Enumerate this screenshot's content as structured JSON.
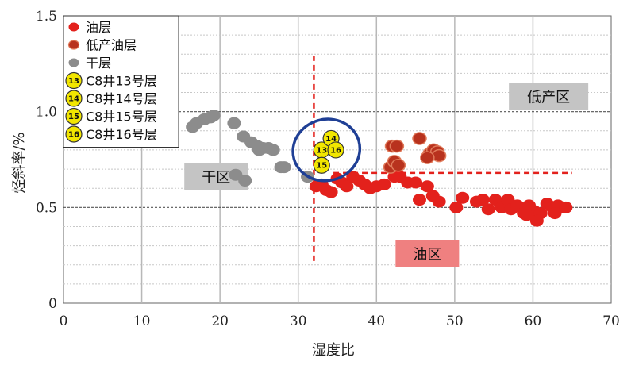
{
  "chart_data": {
    "type": "scatter",
    "title": "",
    "xlabel": "湿度比",
    "ylabel": "烃斜率/%",
    "xlim": [
      0,
      70
    ],
    "ylim": [
      0,
      1.5
    ],
    "x_ticks": [
      "0",
      "10",
      "20",
      "30",
      "40",
      "50",
      "60",
      "70"
    ],
    "y_ticks": [
      "0",
      "0.5",
      "1.0",
      "1.5"
    ],
    "grid": true,
    "legend_position": "top-left",
    "series": [
      {
        "name": "油层",
        "color": "#e3211c",
        "points": [
          [
            32.3,
            0.61
          ],
          [
            33.0,
            0.62
          ],
          [
            33.6,
            0.59
          ],
          [
            34.2,
            0.58
          ],
          [
            35.0,
            0.65
          ],
          [
            35.6,
            0.63
          ],
          [
            36.2,
            0.61
          ],
          [
            37.0,
            0.66
          ],
          [
            37.8,
            0.64
          ],
          [
            38.5,
            0.62
          ],
          [
            39.2,
            0.6
          ],
          [
            40.0,
            0.61
          ],
          [
            41.0,
            0.62
          ],
          [
            42.3,
            0.66
          ],
          [
            43.0,
            0.66
          ],
          [
            44.0,
            0.63
          ],
          [
            45.0,
            0.63
          ],
          [
            46.5,
            0.61
          ],
          [
            47.2,
            0.56
          ],
          [
            48.0,
            0.53
          ],
          [
            45.5,
            0.54
          ],
          [
            50.2,
            0.5
          ],
          [
            51.0,
            0.55
          ],
          [
            52.8,
            0.53
          ],
          [
            53.6,
            0.54
          ],
          [
            54.3,
            0.49
          ],
          [
            55.2,
            0.54
          ],
          [
            56.0,
            0.5
          ],
          [
            56.8,
            0.54
          ],
          [
            57.2,
            0.49
          ],
          [
            58.0,
            0.51
          ],
          [
            58.8,
            0.47
          ],
          [
            59.5,
            0.51
          ],
          [
            60.2,
            0.48
          ],
          [
            61.0,
            0.47
          ],
          [
            61.8,
            0.52
          ],
          [
            62.5,
            0.5
          ],
          [
            63.2,
            0.51
          ],
          [
            63.8,
            0.5
          ],
          [
            64.2,
            0.5
          ],
          [
            60.5,
            0.43
          ],
          [
            59.2,
            0.46
          ],
          [
            62.8,
            0.47
          ]
        ]
      },
      {
        "name": "低产油层",
        "color": "#b8321e",
        "points": [
          [
            41.8,
            0.71
          ],
          [
            42.3,
            0.74
          ],
          [
            42.8,
            0.72
          ],
          [
            42.0,
            0.82
          ],
          [
            42.6,
            0.82
          ],
          [
            45.5,
            0.86
          ],
          [
            46.8,
            0.78
          ],
          [
            47.3,
            0.8
          ],
          [
            47.8,
            0.79
          ],
          [
            48.0,
            0.77
          ],
          [
            46.5,
            0.76
          ]
        ]
      },
      {
        "name": "干层",
        "color": "#8c8c8c",
        "points": [
          [
            16.5,
            0.92
          ],
          [
            17.0,
            0.94
          ],
          [
            18.0,
            0.96
          ],
          [
            18.8,
            0.97
          ],
          [
            19.2,
            0.98
          ],
          [
            21.8,
            0.94
          ],
          [
            23.0,
            0.87
          ],
          [
            24.0,
            0.84
          ],
          [
            24.8,
            0.82
          ],
          [
            25.5,
            0.81
          ],
          [
            26.2,
            0.81
          ],
          [
            26.8,
            0.8
          ],
          [
            25.0,
            0.8
          ],
          [
            27.8,
            0.71
          ],
          [
            28.2,
            0.71
          ],
          [
            22.0,
            0.67
          ],
          [
            23.2,
            0.64
          ],
          [
            31.2,
            0.66
          ]
        ]
      },
      {
        "name": "C8井13号层",
        "marker_label": "13",
        "color": "#f2e600",
        "points": [
          [
            33.0,
            0.8
          ]
        ]
      },
      {
        "name": "C8井14号层",
        "marker_label": "14",
        "color": "#f2e600",
        "points": [
          [
            34.2,
            0.86
          ]
        ]
      },
      {
        "name": "C8井15号层",
        "marker_label": "15",
        "color": "#f2e600",
        "points": [
          [
            33.0,
            0.72
          ]
        ]
      },
      {
        "name": "C8井16号层",
        "marker_label": "16",
        "color": "#f2e600",
        "points": [
          [
            34.8,
            0.8
          ]
        ]
      }
    ],
    "regions": [
      {
        "label": "干区",
        "fill": "#c4c4c4",
        "x": 19.5,
        "y": 0.66
      },
      {
        "label": "低产区",
        "fill": "#c4c4c4",
        "x": 62.0,
        "y": 1.08
      },
      {
        "label": "油区",
        "fill": "#ef8080",
        "x": 46.5,
        "y": 0.26
      }
    ],
    "dividers": [
      {
        "orientation": "vertical",
        "x": 32.0,
        "y_range": [
          0.22,
          1.29
        ],
        "color": "#e3211c"
      },
      {
        "orientation": "horizontal",
        "y": 0.68,
        "x_range": [
          34.5,
          65.0
        ],
        "color": "#e3211c"
      }
    ],
    "highlight_ellipse": {
      "cx": 33.6,
      "cy": 0.8,
      "rx": 4.3,
      "ry": 0.16,
      "angle": -15,
      "color": "#1f3f95"
    }
  }
}
